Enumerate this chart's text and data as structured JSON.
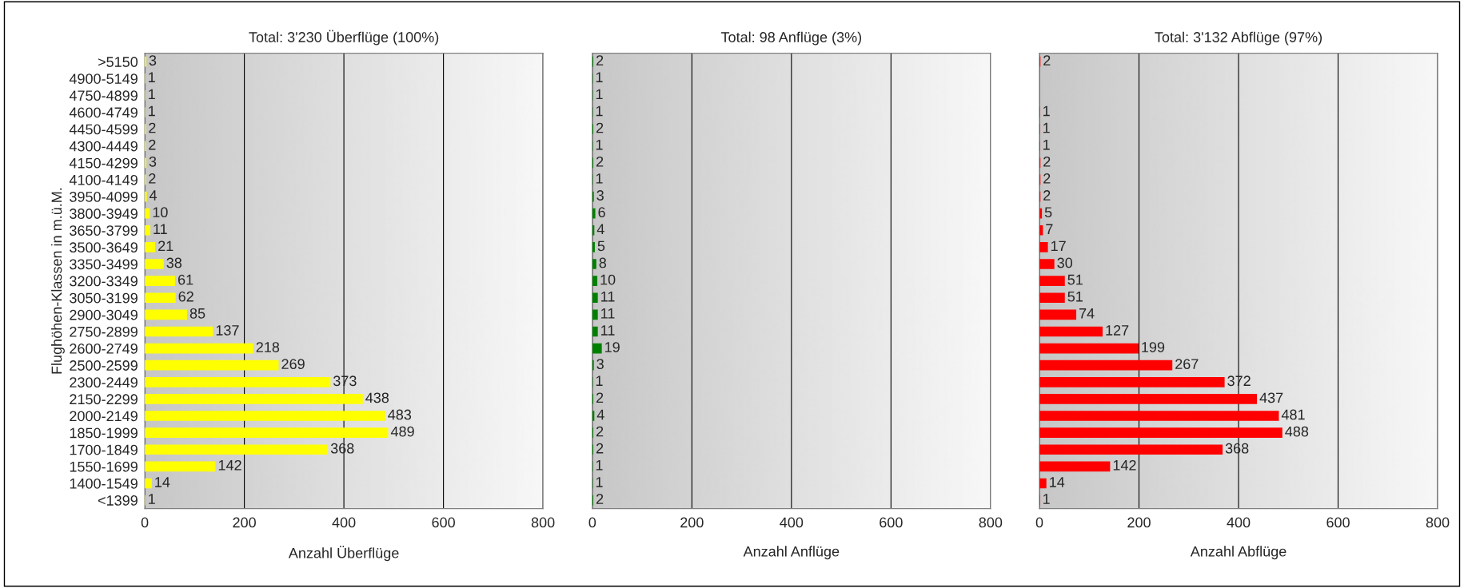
{
  "chart_data": [
    {
      "type": "bar",
      "orientation": "horizontal",
      "title": "Total: 3'230 Überflüge (100%)",
      "xlabel": "Anzahl Überflüge",
      "ylabel": "Flughöhen-Klassen in m.ü.M.",
      "categories": [
        ">5150",
        "4900-5149",
        "4750-4899",
        "4600-4749",
        "4450-4599",
        "4300-4449",
        "4150-4299",
        "4100-4149",
        "3950-4099",
        "3800-3949",
        "3650-3799",
        "3500-3649",
        "3350-3499",
        "3200-3349",
        "3050-3199",
        "2900-3049",
        "2750-2899",
        "2600-2749",
        "2500-2599",
        "2300-2449",
        "2150-2299",
        "2000-2149",
        "1850-1999",
        "1700-1849",
        "1550-1699",
        "1400-1549",
        "<1399"
      ],
      "values": [
        3,
        1,
        1,
        1,
        2,
        2,
        3,
        2,
        4,
        10,
        11,
        21,
        38,
        61,
        62,
        85,
        137,
        218,
        269,
        373,
        438,
        483,
        489,
        368,
        142,
        14,
        1
      ],
      "color": "#ffff00",
      "xlim": [
        0,
        800
      ],
      "xticks": [
        0,
        200,
        400,
        600,
        800
      ],
      "grid": "x",
      "data_labels": true
    },
    {
      "type": "bar",
      "orientation": "horizontal",
      "title": "Total: 98 Anflüge (3%)",
      "xlabel": "Anzahl Anflüge",
      "values": [
        2,
        1,
        1,
        1,
        2,
        1,
        2,
        1,
        3,
        6,
        4,
        5,
        8,
        10,
        11,
        11,
        11,
        19,
        3,
        1,
        2,
        4,
        2,
        2,
        1,
        1,
        2
      ],
      "color": "#008000",
      "xlim": [
        0,
        800
      ],
      "xticks": [
        0,
        200,
        400,
        600,
        800
      ],
      "grid": "x",
      "data_labels": true,
      "tick_labels": "x"
    },
    {
      "type": "bar",
      "orientation": "horizontal",
      "title": "Total: 3'132 Abflüge (97%)",
      "xlabel": "Anzahl Abflüge",
      "values": [
        2,
        null,
        null,
        1,
        1,
        1,
        2,
        2,
        2,
        5,
        7,
        17,
        30,
        51,
        51,
        74,
        127,
        199,
        267,
        372,
        437,
        481,
        488,
        368,
        142,
        14,
        1
      ],
      "color": "#ff0000",
      "xlim": [
        0,
        800
      ],
      "xticks": [
        0,
        200,
        400,
        600,
        800
      ],
      "grid": "x",
      "data_labels": true,
      "tick_labels": "x"
    }
  ]
}
